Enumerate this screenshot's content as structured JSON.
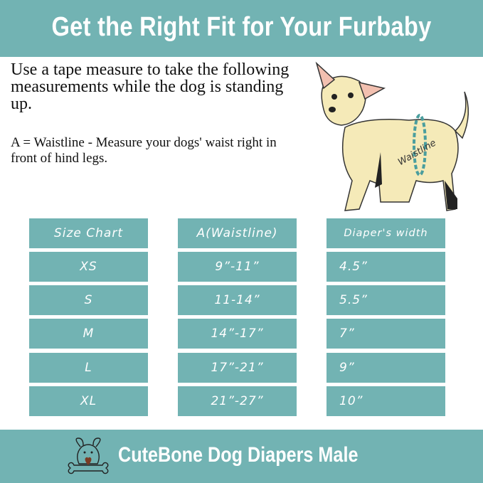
{
  "header": {
    "title": "Get the Right Fit for Your Furbaby"
  },
  "instructions": {
    "intro": "Use a tape measure to take the following measurements while the dog is standing up.",
    "waist_note": "A = Waistline - Measure your dogs' waist right in front of hind legs."
  },
  "illustration": {
    "label": "Waistline"
  },
  "size_chart": {
    "headers": [
      "Size Chart",
      "A(Waistline)",
      "Diaper's width"
    ],
    "rows": [
      [
        "XS",
        "9”-11”",
        "4.5”"
      ],
      [
        "S",
        "11-14”",
        "5.5”"
      ],
      [
        "M",
        "14”-17”",
        "7”"
      ],
      [
        "L",
        "17”-21”",
        "9”"
      ],
      [
        "XL",
        "21”-27”",
        "10”"
      ]
    ]
  },
  "footer": {
    "brand": "CuteBone Dog Diapers Male",
    "logo": "dog-with-bone-logo"
  },
  "colors": {
    "accent": "#72b3b3"
  }
}
